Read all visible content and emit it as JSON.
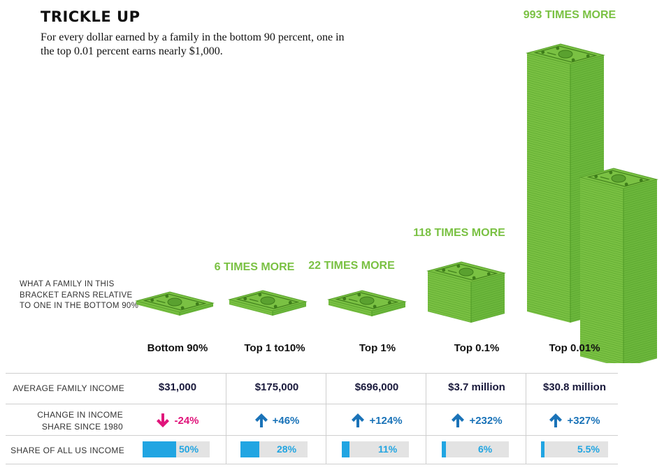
{
  "header": {
    "title": "TRICKLE UP",
    "subtitle": "For every dollar earned by a family in the bottom 90 percent, one in the top 0.01 percent earns nearly $1,000."
  },
  "side_note": "WHAT A FAMILY IN THIS BRACKET EARNS RELATIVE TO ONE IN THE BOTTOM 90%",
  "row_labels": {
    "income": "AVERAGE FAMILY INCOME",
    "change": "CHANGE IN INCOME SHARE SINCE 1980",
    "share": "SHARE OF ALL US INCOME"
  },
  "colors": {
    "money_green": "#7ac143",
    "money_dark": "#3e7d1a",
    "share_blue": "#21a5e2",
    "up_blue": "#1a73b8",
    "down_pink": "#e0157b",
    "income_navy": "#1a1a3c"
  },
  "chart_data": {
    "type": "table",
    "title": "TRICKLE UP",
    "brackets": [
      {
        "label": "Bottom 90%",
        "multiple": null,
        "multiple_label": "",
        "income": "$31,000",
        "change": "-24%",
        "direction": "down",
        "share": 50,
        "share_label": "50%",
        "icon": "arrow-down-icon"
      },
      {
        "label": "Top 1 to10%",
        "multiple": 6,
        "multiple_label": "6 TIMES MORE",
        "income": "$175,000",
        "change": "+46%",
        "direction": "up",
        "share": 28,
        "share_label": "28%",
        "icon": "arrow-up-icon"
      },
      {
        "label": "Top 1%",
        "multiple": 22,
        "multiple_label": "22 TIMES MORE",
        "income": "$696,000",
        "change": "+124%",
        "direction": "up",
        "share": 11,
        "share_label": "11%",
        "icon": "arrow-up-icon"
      },
      {
        "label": "Top 0.1%",
        "multiple": 118,
        "multiple_label": "118 TIMES MORE",
        "income": "$3.7 million",
        "change": "+232%",
        "direction": "up",
        "share": 6,
        "share_label": "6%",
        "icon": "arrow-up-icon"
      },
      {
        "label": "Top 0.01%",
        "multiple": 993,
        "multiple_label": "993 TIMES MORE",
        "income": "$30.8 million",
        "change": "+327%",
        "direction": "up",
        "share": 5.5,
        "share_label": "5.5%",
        "icon": "arrow-up-icon"
      }
    ]
  }
}
